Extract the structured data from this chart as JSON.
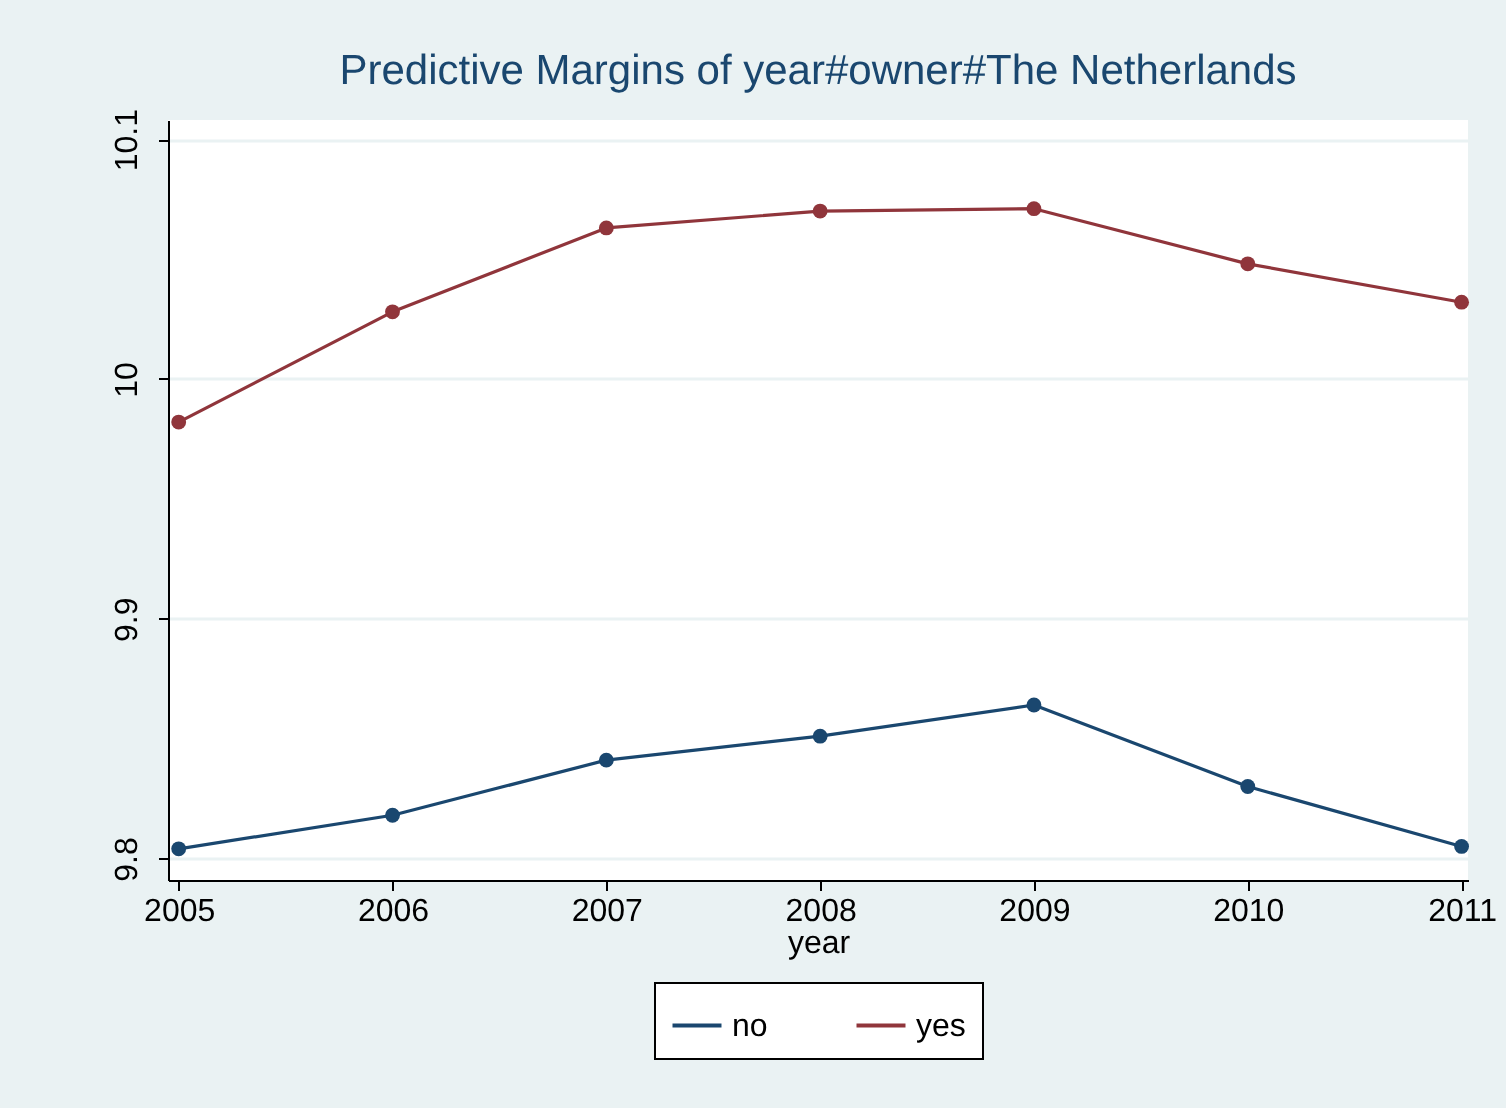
{
  "chart_data": {
    "type": "line",
    "title": "Predictive Margins of year#owner#The Netherlands",
    "xlabel": "year",
    "x": [
      2005,
      2006,
      2007,
      2008,
      2009,
      2010,
      2011
    ],
    "series": [
      {
        "name": "no",
        "color": "#1a476f",
        "values": [
          9.804,
          9.818,
          9.841,
          9.851,
          9.864,
          9.83,
          9.805
        ]
      },
      {
        "name": "yes",
        "color": "#90353b",
        "values": [
          9.982,
          10.028,
          10.063,
          10.07,
          10.071,
          10.048,
          10.032
        ]
      }
    ],
    "xlim": [
      2004.95,
      2011.03
    ],
    "xticks": [
      2005,
      2006,
      2007,
      2008,
      2009,
      2010,
      2011
    ],
    "ylim": [
      9.791,
      10.108
    ],
    "yticks": [
      9.8,
      9.9,
      10,
      10.1
    ],
    "grid": "y",
    "legend": "bottom",
    "marker": "circle",
    "line_style": "solid"
  }
}
